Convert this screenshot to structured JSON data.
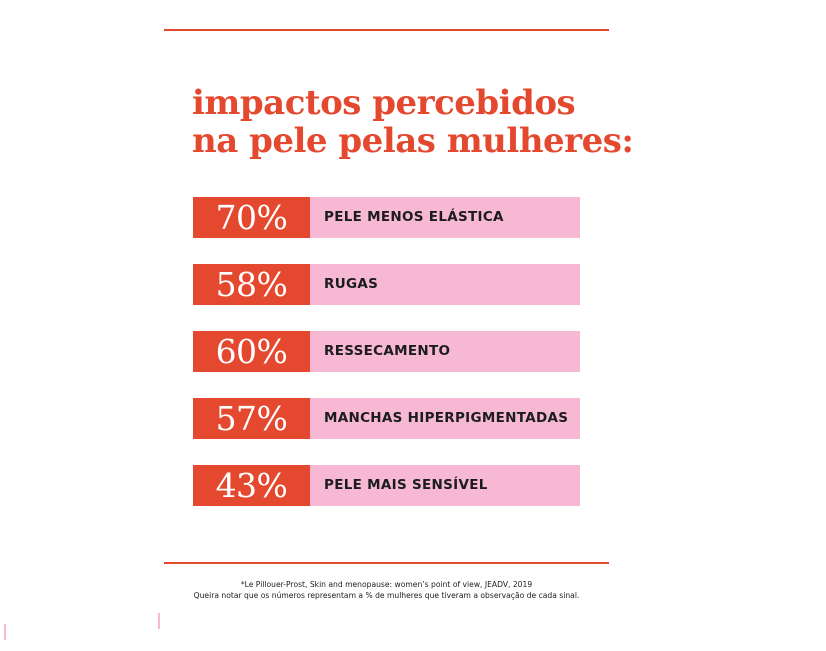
{
  "colors": {
    "accent": "#e4492f",
    "pink": "#f6b8d2"
  },
  "title": {
    "line1": "impactos percebidos",
    "line2": "na pele pelas mulheres:"
  },
  "chart_data": {
    "type": "bar",
    "categories": [
      "PELE MENOS ELÁSTICA",
      "RUGAS",
      "RESSECAMENTO",
      "MANCHAS HIPERPIGMENTADAS",
      "PELE MAIS SENSÍVEL"
    ],
    "values": [
      70,
      58,
      60,
      57,
      43
    ],
    "value_labels": [
      "70%",
      "58%",
      "60%",
      "57%",
      "43%"
    ],
    "title": "impactos percebidos na pele pelas mulheres:"
  },
  "footnote": {
    "line1": "*Le Pillouer-Prost, Skin and menopause: women’s point of view, JEADV, 2019",
    "line2": "Queira notar que os números representam a % de mulheres que tiveram a observação de cada sinal."
  }
}
